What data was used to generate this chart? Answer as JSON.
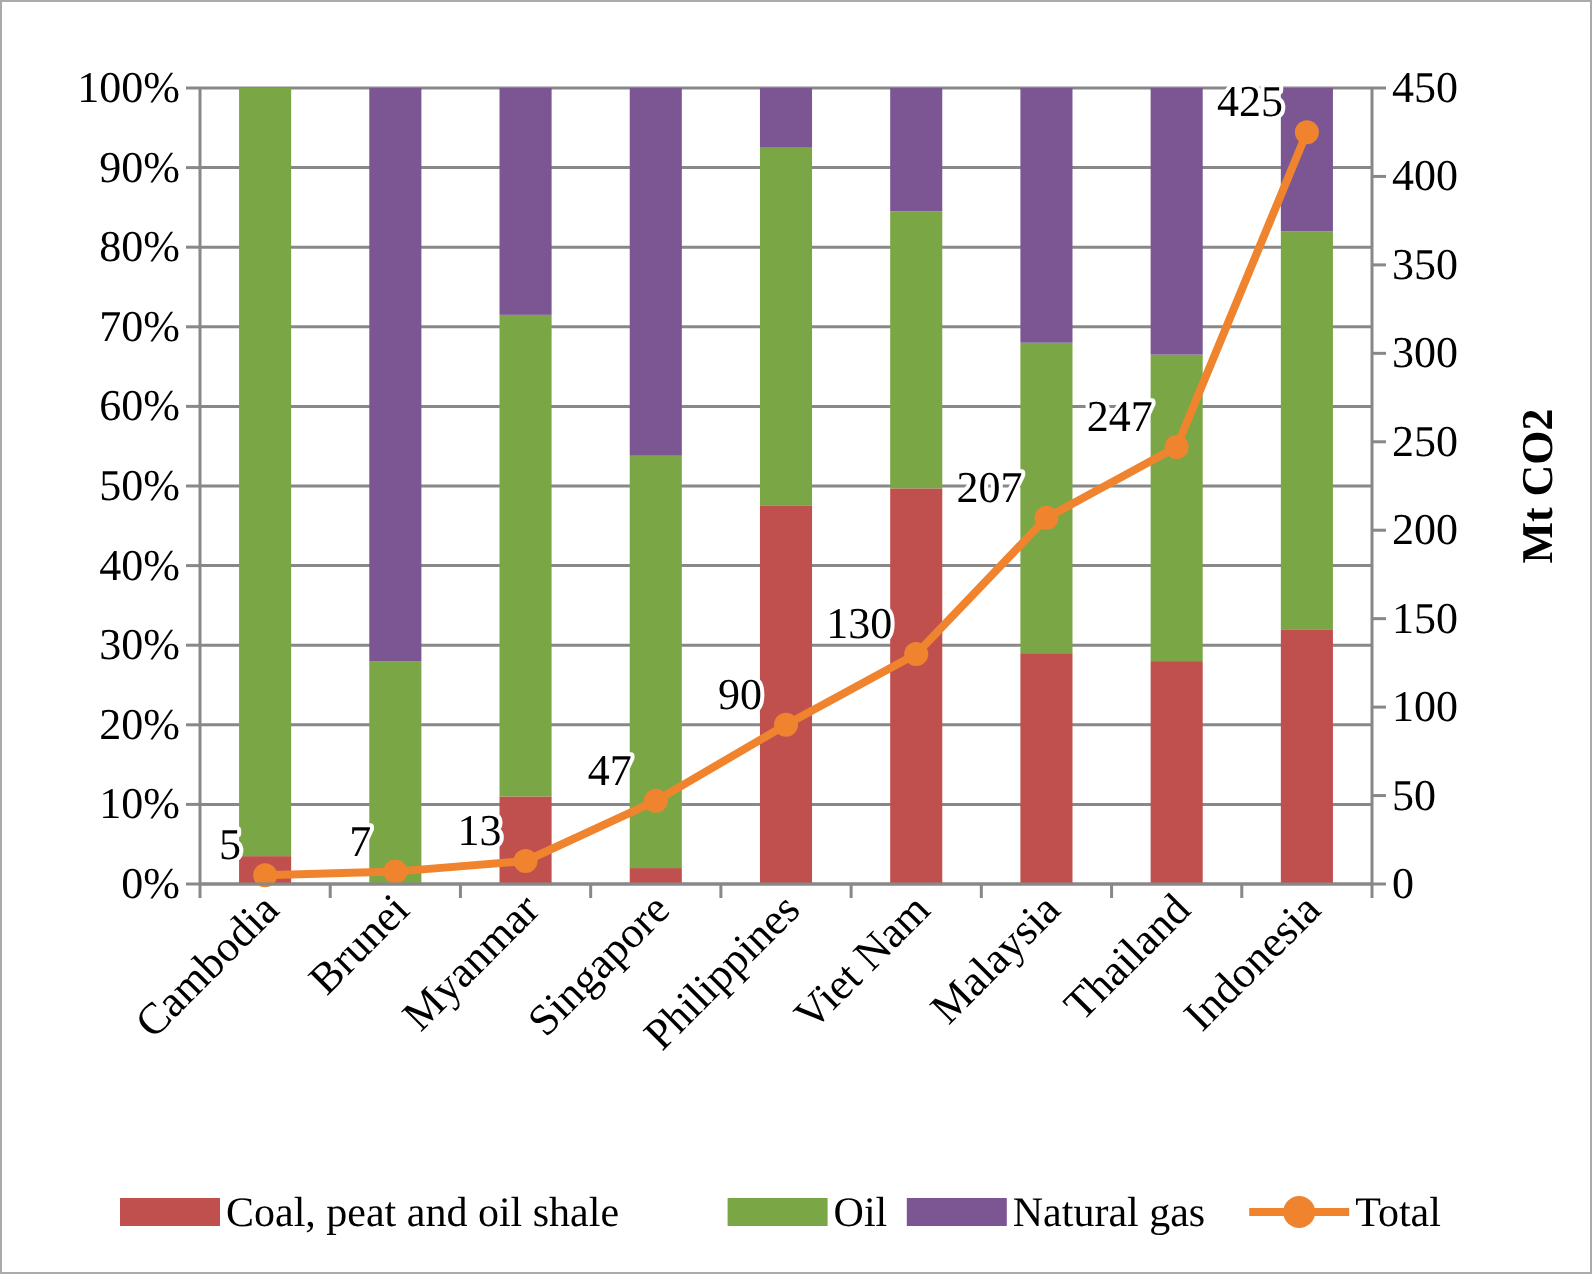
{
  "chart_data": {
    "type": "bar",
    "stacked": true,
    "categories": [
      "Cambodia",
      "Brunei",
      "Myanmar",
      "Singapore",
      "Philippines",
      "Viet Nam",
      "Malaysia",
      "Thailand",
      "Indonesia"
    ],
    "y2label": "Mt CO2",
    "ylim": [
      0,
      100
    ],
    "yticks": [
      {
        "value": 0,
        "label": "0%"
      },
      {
        "value": 10,
        "label": "10%"
      },
      {
        "value": 20,
        "label": "20%"
      },
      {
        "value": 30,
        "label": "30%"
      },
      {
        "value": 40,
        "label": "40%"
      },
      {
        "value": 50,
        "label": "50%"
      },
      {
        "value": 60,
        "label": "60%"
      },
      {
        "value": 70,
        "label": "70%"
      },
      {
        "value": 80,
        "label": "80%"
      },
      {
        "value": 90,
        "label": "90%"
      },
      {
        "value": 100,
        "label": "100%"
      }
    ],
    "y2lim": [
      0,
      450
    ],
    "y2ticks": [
      0,
      50,
      100,
      150,
      200,
      250,
      300,
      350,
      400,
      450
    ],
    "grid": "y",
    "legend": "bottom",
    "series": [
      {
        "name": "Coal, peat and oil shale",
        "color": "#c0504d",
        "values": [
          3.5,
          0,
          11,
          2,
          47.5,
          49.7,
          29,
          28,
          32
        ]
      },
      {
        "name": "Oil",
        "color": "#7ba646",
        "values": [
          96.5,
          28,
          60.5,
          51.8,
          45,
          34.8,
          39,
          38.5,
          50
        ]
      },
      {
        "name": "Natural gas",
        "color": "#7b5692",
        "values": [
          0,
          72,
          28.5,
          46.2,
          7.5,
          15.5,
          32,
          33.5,
          18
        ]
      },
      {
        "name": "Total",
        "type": "line",
        "axis": "y2",
        "color": "#f0842e",
        "marker": "circle",
        "values": [
          5,
          7,
          13,
          47,
          90,
          130,
          207,
          247,
          425
        ],
        "value_labels": [
          "5",
          "7",
          "13",
          "47",
          "90",
          "130",
          "207",
          "247",
          "425"
        ]
      }
    ]
  }
}
